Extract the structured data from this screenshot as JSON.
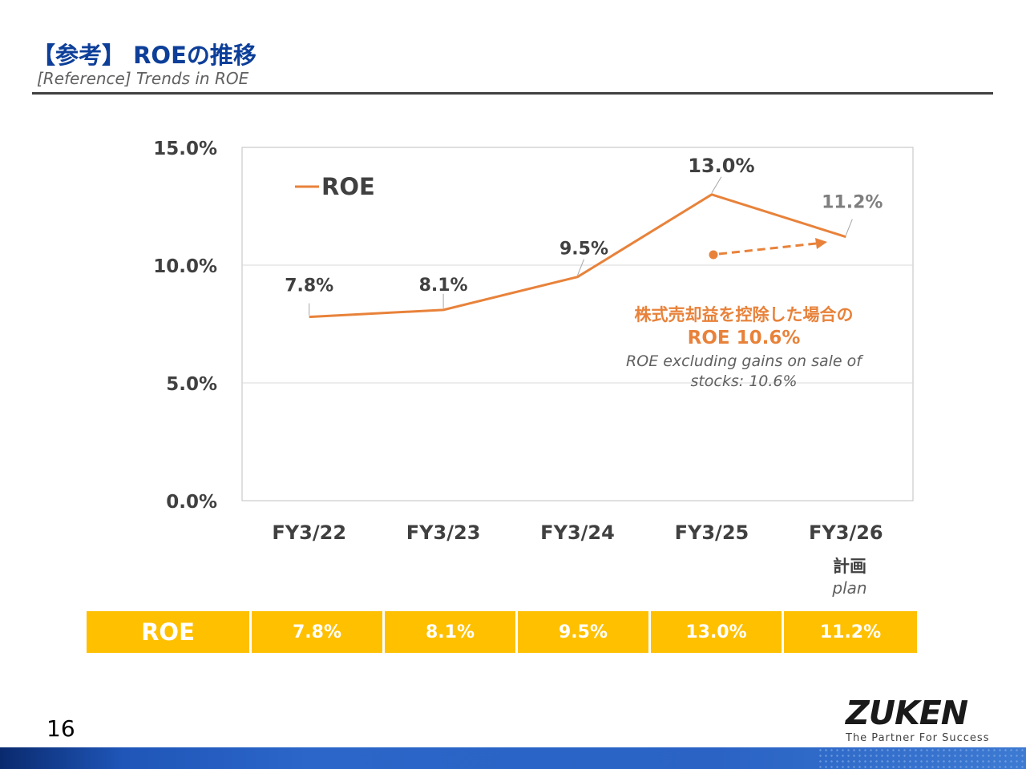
{
  "header": {
    "title": "【参考】 ROEの推移",
    "subtitle": "[Reference] Trends in ROE"
  },
  "chart_data": {
    "type": "line",
    "categories": [
      "FY3/22",
      "FY3/23",
      "FY3/24",
      "FY3/25",
      "FY3/26"
    ],
    "category_note": {
      "index": 4,
      "ja": "計画",
      "en": "plan"
    },
    "series": [
      {
        "name": "ROE",
        "values": [
          7.8,
          8.1,
          9.5,
          13.0,
          11.2
        ],
        "color": "#e8823a"
      }
    ],
    "data_labels": [
      "7.8%",
      "8.1%",
      "9.5%",
      "13.0%",
      "11.2%"
    ],
    "yticks": [
      "0.0%",
      "5.0%",
      "10.0%",
      "15.0%"
    ],
    "ylim": [
      0,
      15
    ],
    "grid": true,
    "legend": "top-left",
    "annotation": {
      "value": 10.6,
      "ja": "株式売却益を控除した場合の",
      "value_label": "ROE 10.6%",
      "en_line1": "ROE excluding gains on sale of",
      "en_line2": "stocks: 10.6%",
      "color": "#e8823a"
    }
  },
  "table": {
    "header": "ROE",
    "values": [
      "7.8%",
      "8.1%",
      "9.5%",
      "13.0%",
      "11.2%"
    ],
    "color": "#ffc000"
  },
  "footer": {
    "page_number": "16",
    "logo_text": "ZUKEN",
    "logo_tagline": "The Partner For Success"
  }
}
